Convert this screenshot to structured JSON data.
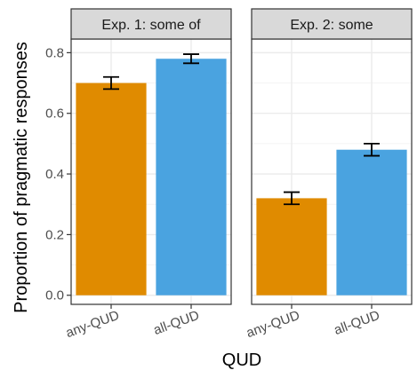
{
  "chart_data": {
    "type": "bar",
    "xlabel": "QUD",
    "ylabel": "Proportion of pragmatic responses",
    "ylim": [
      -0.03,
      0.845
    ],
    "yticks": [
      0.0,
      0.2,
      0.4,
      0.6,
      0.8
    ],
    "ytick_labels": [
      "0.0",
      "0.2",
      "0.4",
      "0.6",
      "0.8"
    ],
    "grid": true,
    "panels": [
      {
        "title": "Exp. 1: some of",
        "categories": [
          "any-QUD",
          "all-QUD"
        ],
        "values": [
          0.7,
          0.78
        ],
        "error_low": [
          0.68,
          0.765
        ],
        "error_high": [
          0.72,
          0.795
        ],
        "colors": [
          "#E08B00",
          "#4AA3E0"
        ]
      },
      {
        "title": "Exp. 2: some",
        "categories": [
          "any-QUD",
          "all-QUD"
        ],
        "values": [
          0.32,
          0.48
        ],
        "error_low": [
          0.3,
          0.46
        ],
        "error_high": [
          0.34,
          0.5
        ],
        "colors": [
          "#E08B00",
          "#4AA3E0"
        ]
      }
    ],
    "colors": {
      "strip_fill": "#D9D9D9",
      "panel_border": "#333333",
      "grid_major": "#EBEBEB",
      "grid_minor": "#F4F4F4",
      "error_bar": "#000000"
    }
  }
}
